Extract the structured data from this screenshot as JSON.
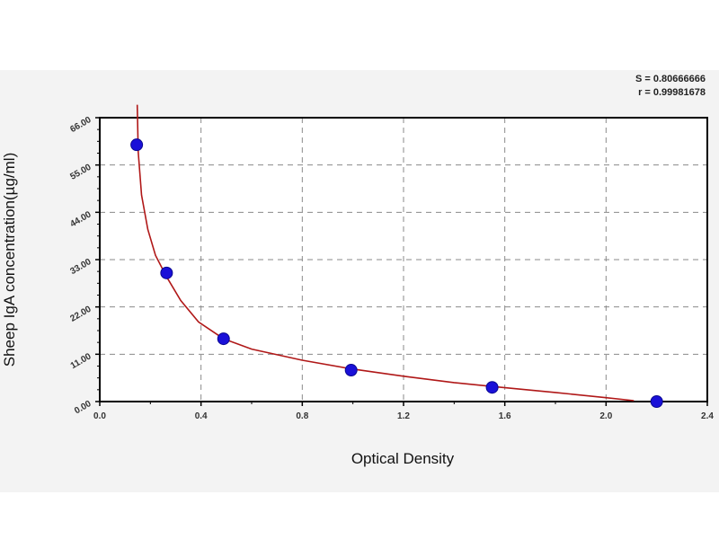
{
  "chart_data": {
    "type": "scatter",
    "title": "",
    "xlabel": "Optical Density",
    "ylabel": "Sheep IgA concentration(µg/ml)",
    "xlim": [
      0,
      2.4
    ],
    "ylim": [
      0,
      66
    ],
    "x_ticks": [
      "0.0",
      "0.4",
      "0.8",
      "1.2",
      "1.6",
      "2.0",
      "2.4"
    ],
    "y_ticks": [
      "0.00",
      "11.00",
      "22.00",
      "33.00",
      "44.00",
      "55.00",
      "66.00"
    ],
    "grid": true,
    "stats": [
      "S = 0.80666666",
      "r = 0.99981678"
    ],
    "points": [
      {
        "x": 0.146,
        "y": 59.7
      },
      {
        "x": 0.264,
        "y": 29.9
      },
      {
        "x": 0.489,
        "y": 14.6
      },
      {
        "x": 0.993,
        "y": 7.3
      },
      {
        "x": 1.55,
        "y": 3.3
      },
      {
        "x": 2.2,
        "y": 0.0
      }
    ],
    "fit_curve": [
      {
        "x": 0.148,
        "y": 69
      },
      {
        "x": 0.152,
        "y": 58
      },
      {
        "x": 0.165,
        "y": 48
      },
      {
        "x": 0.19,
        "y": 40
      },
      {
        "x": 0.22,
        "y": 34
      },
      {
        "x": 0.264,
        "y": 29.0
      },
      {
        "x": 0.32,
        "y": 23.5
      },
      {
        "x": 0.39,
        "y": 18.5
      },
      {
        "x": 0.489,
        "y": 14.6
      },
      {
        "x": 0.6,
        "y": 12.2
      },
      {
        "x": 0.8,
        "y": 9.6
      },
      {
        "x": 0.993,
        "y": 7.6
      },
      {
        "x": 1.2,
        "y": 5.9
      },
      {
        "x": 1.4,
        "y": 4.4
      },
      {
        "x": 1.55,
        "y": 3.5
      },
      {
        "x": 1.8,
        "y": 2.1
      },
      {
        "x": 2.0,
        "y": 0.9
      },
      {
        "x": 2.11,
        "y": 0.2
      }
    ],
    "colors": {
      "points": "#1a10d8",
      "curve": "#b01818",
      "grid": "#8a8a8a"
    }
  }
}
